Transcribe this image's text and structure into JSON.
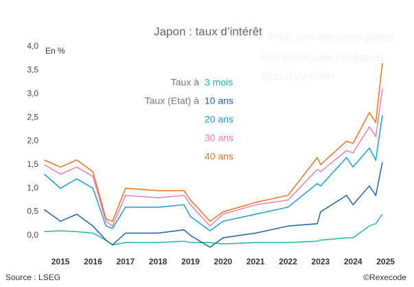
{
  "chart_data": {
    "type": "line",
    "title": "Japon : taux d’intérêt",
    "y_unit": "En %",
    "source": "Source : LSEG",
    "copyright": "©Rexecode",
    "x": [
      2014.5,
      2015,
      2015.5,
      2016,
      2016.4,
      2016.6,
      2017,
      2018,
      2018.8,
      2019,
      2019.6,
      2020,
      2021,
      2022,
      2022.9,
      2023,
      2023.8,
      2024,
      2024.5,
      2024.7,
      2024.9
    ],
    "series": [
      {
        "name": "3 mois",
        "prefix": "Taux à",
        "color": "#26b3a3",
        "values": [
          0.08,
          0.1,
          0.08,
          0.05,
          -0.1,
          -0.2,
          -0.15,
          -0.15,
          -0.12,
          -0.15,
          -0.15,
          -0.18,
          -0.15,
          -0.15,
          -0.12,
          -0.1,
          -0.05,
          -0.05,
          0.2,
          0.25,
          0.45
        ]
      },
      {
        "name": "10 ans",
        "prefix": "Taux (Etat) à",
        "color": "#1f5fa8",
        "values": [
          0.55,
          0.3,
          0.45,
          0.2,
          -0.1,
          -0.2,
          0.05,
          0.05,
          0.12,
          0.0,
          -0.25,
          -0.05,
          0.05,
          0.2,
          0.25,
          0.5,
          0.85,
          0.65,
          1.05,
          0.85,
          1.55
        ]
      },
      {
        "name": "20 ans",
        "color": "#1a9ad6",
        "values": [
          1.3,
          1.0,
          1.2,
          1.0,
          0.2,
          0.15,
          0.6,
          0.6,
          0.65,
          0.4,
          0.1,
          0.3,
          0.45,
          0.6,
          1.1,
          1.05,
          1.65,
          1.45,
          1.85,
          1.6,
          2.55
        ]
      },
      {
        "name": "30 ans",
        "color": "#f07ab3",
        "values": [
          1.5,
          1.3,
          1.45,
          1.25,
          0.3,
          0.2,
          0.85,
          0.8,
          0.85,
          0.65,
          0.2,
          0.45,
          0.65,
          0.75,
          1.4,
          1.35,
          1.8,
          1.75,
          2.3,
          2.1,
          3.1
        ]
      },
      {
        "name": "40 ans",
        "color": "#e8731e",
        "values": [
          1.6,
          1.45,
          1.6,
          1.35,
          0.35,
          0.3,
          1.0,
          0.95,
          0.95,
          0.75,
          0.3,
          0.5,
          0.7,
          0.85,
          1.65,
          1.5,
          2.0,
          1.95,
          2.6,
          2.4,
          3.65
        ]
      }
    ],
    "xlim": [
      2014.47,
      2025.6
    ],
    "xticks": [
      2015,
      2016,
      2017,
      2018,
      2019,
      2020,
      2021,
      2022,
      2023,
      2024,
      2025
    ],
    "ylim": [
      -0.35,
      4.0
    ],
    "yticks": [
      {
        "value": 0,
        "label": "0,0"
      },
      {
        "value": 0.5,
        "label": "0,5"
      },
      {
        "value": 1,
        "label": "1,0"
      },
      {
        "value": 1.5,
        "label": "1,5"
      },
      {
        "value": 2,
        "label": "2,0"
      },
      {
        "value": 2.5,
        "label": "2,5"
      },
      {
        "value": 3,
        "label": "3,0"
      },
      {
        "value": 3.5,
        "label": "3,5"
      },
      {
        "value": 4,
        "label": "4,0"
      }
    ],
    "grid": false
  },
  "overlay": [
    "Pour une nouvelle philos",
    "des politiques publiques",
    "décarbonation"
  ]
}
